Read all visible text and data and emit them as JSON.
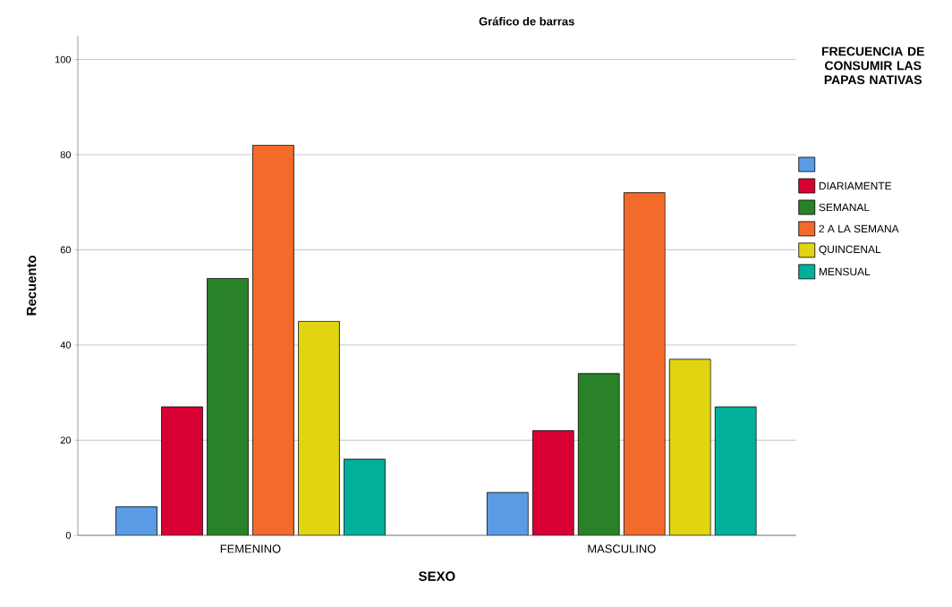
{
  "chart_data": {
    "type": "bar",
    "title": "Gráfico de barras",
    "xlabel": "SEXO",
    "ylabel": "Recuento",
    "legend_title": "FRECUENCIA DE CONSUMIR LAS PAPAS NATIVAS",
    "categories": [
      "FEMENINO",
      "MASCULINO"
    ],
    "series": [
      {
        "color": "#5b9be6",
        "values": [
          6,
          9
        ]
      },
      {
        "name": "DIARIAMENTE",
        "color": "#d80032",
        "values": [
          27,
          22
        ]
      },
      {
        "name": "SEMANAL",
        "color": "#2a8228",
        "values": [
          54,
          34
        ]
      },
      {
        "name": "2 A LA SEMANA",
        "color": "#f26b2a",
        "values": [
          82,
          72
        ]
      },
      {
        "name": "QUINCENAL",
        "color": "#e0d510",
        "values": [
          45,
          37
        ]
      },
      {
        "name": "MENSUAL",
        "color": "#00b09b",
        "values": [
          16,
          27
        ]
      }
    ],
    "ylim": [
      0,
      105
    ],
    "yticks": [
      0,
      20,
      40,
      60,
      80,
      100
    ],
    "grid": "y",
    "legend": "right"
  }
}
